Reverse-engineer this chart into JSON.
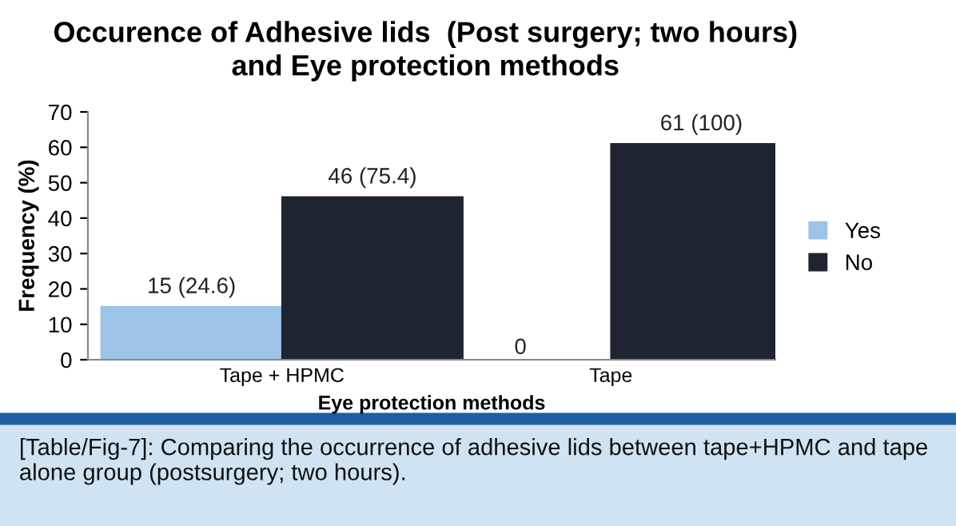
{
  "chart_data": {
    "type": "bar",
    "title": "Occurence of Adhesive lids  (Post surgery; two hours)\nand Eye protection methods",
    "xlabel": "Eye protection methods",
    "ylabel": "Frequency (%)",
    "categories": [
      "Tape + HPMC",
      "Tape"
    ],
    "series": [
      {
        "name": "Yes",
        "color": "#9dc3e6",
        "values": [
          15,
          0
        ],
        "value_labels": [
          "15 (24.6)",
          "0"
        ]
      },
      {
        "name": "No",
        "color": "#1e2431",
        "values": [
          46,
          61
        ],
        "value_labels": [
          "46 (75.4)",
          "61 (100)"
        ]
      }
    ],
    "ylim": [
      0,
      70
    ],
    "yticks": [
      0,
      10,
      20,
      30,
      40,
      50,
      60,
      70
    ],
    "grid": false,
    "legend": "right",
    "annotations": [
      "[Table/Fig-7]: Comparing the occurrence of adhesive lids between tape+HPMC and tape alone group (postsurgery; two hours)."
    ]
  }
}
